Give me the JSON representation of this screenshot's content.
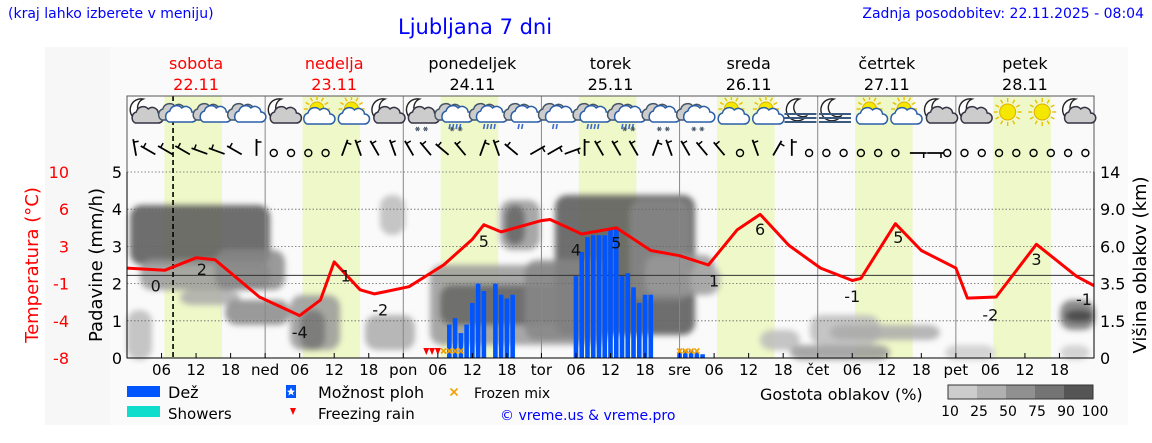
{
  "header": {
    "hint": "(kraj lahko izberete v meniju)",
    "title": "Ljubljana 7 dni",
    "updated": "Zadnja posodobitev: 22.11.2025 - 08:04"
  },
  "colors": {
    "temperature": "#ff0000",
    "rain": "#0055ff",
    "showers": "#11ddcc",
    "daylight": "#eff8c8",
    "frozen_mix": "#f0a000",
    "freezing_rain": "#ff0000",
    "weekend": "#ff0000"
  },
  "chart_data": {
    "type": "meteogram",
    "days": [
      {
        "name": "sobota",
        "date": "22.11",
        "weekend": true
      },
      {
        "name": "nedelja",
        "date": "23.11",
        "weekend": true
      },
      {
        "name": "ponedeljek",
        "date": "24.11",
        "weekend": false
      },
      {
        "name": "torek",
        "date": "25.11",
        "weekend": false
      },
      {
        "name": "sreda",
        "date": "26.11",
        "weekend": false
      },
      {
        "name": "četrtek",
        "date": "27.11",
        "weekend": false
      },
      {
        "name": "petek",
        "date": "28.11",
        "weekend": false
      }
    ],
    "x_ticks": [
      "",
      "06",
      "12",
      "18",
      "ned",
      "06",
      "12",
      "18",
      "pon",
      "06",
      "12",
      "18",
      "tor",
      "06",
      "12",
      "18",
      "sre",
      "06",
      "12",
      "18",
      "čet",
      "06",
      "12",
      "18",
      "pet",
      "06",
      "12",
      "18"
    ],
    "xrange_hours": [
      0,
      168
    ],
    "current_time_hour": 8,
    "daylight_hours": [
      6.5,
      16.5
    ],
    "left_axis": {
      "label": "Temperatura (°C)",
      "ticks": [
        "10",
        "6",
        "3",
        "-1",
        "-4",
        "-8"
      ],
      "range": [
        -8,
        10
      ]
    },
    "precip_axis": {
      "label": "Padavine (mm/h)",
      "ticks": [
        "5",
        "4",
        "3",
        "2",
        "1",
        "0"
      ],
      "range": [
        0,
        5
      ]
    },
    "right_axis": {
      "label": "Višina oblakov (km)",
      "ticks": [
        "14",
        "9.0",
        "6.0",
        "3.5",
        "1.5",
        "0"
      ]
    },
    "temperature": {
      "hours": [
        0,
        6.6,
        12,
        15.3,
        23,
        30,
        33.6,
        36,
        40.5,
        43,
        49,
        55,
        60,
        62,
        65,
        72,
        73.5,
        79,
        85,
        91,
        96,
        101,
        106,
        110,
        115,
        120.5,
        126,
        127.5,
        133.5,
        138,
        144,
        146,
        151,
        158,
        165,
        168
      ],
      "values": [
        0.7,
        0.5,
        1.7,
        1.5,
        -2.1,
        -3.9,
        -2.4,
        1.3,
        -1.4,
        -1.8,
        -1.1,
        1.0,
        3.5,
        4.9,
        4.2,
        5.3,
        5.4,
        4.0,
        4.6,
        2.4,
        1.9,
        1.0,
        4.4,
        5.9,
        2.9,
        0.7,
        -0.5,
        -0.3,
        5.0,
        2.4,
        0.7,
        -2.2,
        -2.1,
        3.0,
        -0.1,
        -1.0
      ]
    },
    "temperature_labels": [
      {
        "hour": 5,
        "temp": -1.0,
        "text": "0"
      },
      {
        "hour": 13,
        "temp": 0.6,
        "text": "2"
      },
      {
        "hour": 30,
        "temp": -5.5,
        "text": "-4"
      },
      {
        "hour": 38,
        "temp": 0.0,
        "text": "1"
      },
      {
        "hour": 44,
        "temp": -3.3,
        "text": "-2"
      },
      {
        "hour": 62,
        "temp": 3.3,
        "text": "5"
      },
      {
        "hour": 78,
        "temp": 2.5,
        "text": "4"
      },
      {
        "hour": 85,
        "temp": 3.2,
        "text": "5"
      },
      {
        "hour": 102,
        "temp": -0.5,
        "text": "1"
      },
      {
        "hour": 110,
        "temp": 4.5,
        "text": "6"
      },
      {
        "hour": 126,
        "temp": -2.0,
        "text": "-1"
      },
      {
        "hour": 134,
        "temp": 3.7,
        "text": "5"
      },
      {
        "hour": 150,
        "temp": -3.8,
        "text": "-2"
      },
      {
        "hour": 158,
        "temp": 1.6,
        "text": "3"
      },
      {
        "hour": 168,
        "temp": -2.3,
        "text": "-1"
      }
    ],
    "rain": {
      "hours": [
        56,
        57,
        58,
        59,
        60,
        61,
        62,
        64,
        65,
        66,
        67,
        78,
        79,
        80,
        81,
        82,
        83,
        84,
        85,
        86,
        87,
        88,
        89,
        90,
        91,
        96,
        97,
        98,
        99,
        100
      ],
      "values": [
        0.9,
        1.07,
        0.67,
        0.9,
        1.48,
        2.0,
        1.8,
        2.0,
        1.7,
        1.6,
        1.7,
        2.2,
        2.85,
        3.25,
        3.3,
        3.3,
        3.3,
        3.45,
        3.47,
        2.2,
        2.28,
        1.9,
        1.48,
        1.7,
        1.7,
        0.15,
        0.2,
        0.2,
        0.15,
        0.1
      ]
    },
    "freezing_rain_hours": [
      52,
      53,
      54
    ],
    "frozen_mix_hours": [
      55,
      56,
      57,
      58,
      96,
      97,
      98,
      99
    ],
    "weather_icons": [
      "moon-cloud",
      "cloud",
      "cloud",
      "cloud",
      "moon-cloud",
      "sun-cloud",
      "sun-cloud",
      "moon-cloud",
      "moon-cloud-snow",
      "cloud-sleet",
      "cloud-rain",
      "cloud-light-rain",
      "cloud-light-rain",
      "cloud-rain",
      "cloud-sleet",
      "cloud-snow",
      "cloud-snow",
      "sun-cloud",
      "sun-cloud",
      "moon-fog",
      "moon-fog",
      "sun-cloud",
      "sun-cloud",
      "moon-cloud",
      "moon-cloud",
      "sun",
      "sun",
      "moon-cloud"
    ],
    "wind": [
      350,
      300,
      300,
      300,
      290,
      290,
      300,
      0,
      "calm",
      "calm",
      "calm",
      "calm",
      20,
      340,
      330,
      340,
      330,
      320,
      310,
      320,
      20,
      340,
      310,
      60,
      60,
      70,
      0,
      330,
      330,
      330,
      20,
      340,
      330,
      320,
      320,
      "calm",
      340,
      30,
      0,
      "calm",
      "calm",
      "calm",
      "calm",
      "calm",
      "calm",
      90,
      90,
      "calm",
      "calm",
      "calm",
      "calm",
      "calm",
      "calm",
      "calm",
      "calm",
      "calm"
    ]
  },
  "legend": {
    "rain": "Dež",
    "showers": "Showers",
    "possible_showers": "Možnost ploh",
    "freezing_rain": "Freezing rain",
    "frozen_mix": "Frozen mix",
    "copyright": "© vreme.us & vreme.pro",
    "cloud_density": "Gostota oblakov (%)",
    "cloud_scale": [
      "10",
      "25",
      "50",
      "75",
      "90",
      "100"
    ]
  }
}
